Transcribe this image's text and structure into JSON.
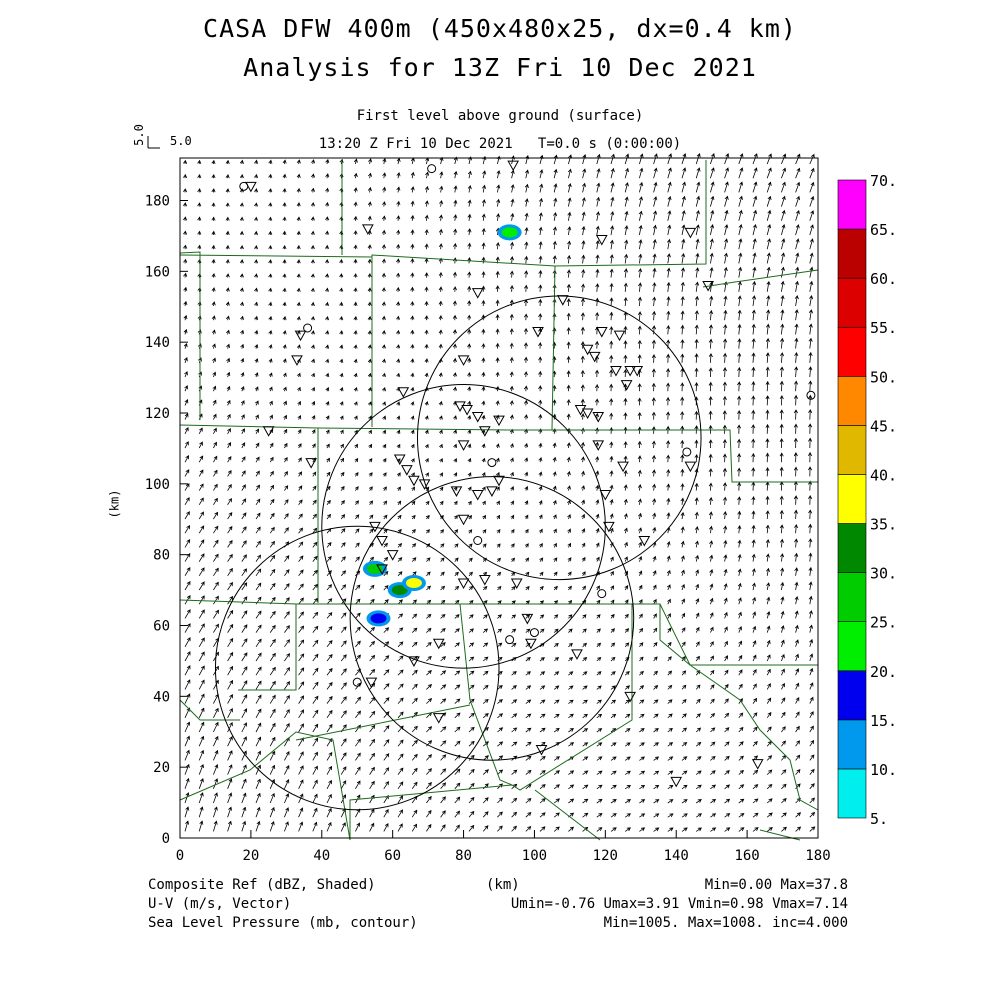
{
  "title_line1": "CASA DFW 400m (450x480x25, dx=0.4 km)",
  "title_line2": "Analysis for 13Z Fri 10 Dec 2021",
  "subtitle_line1": "First level above ground (surface)",
  "subtitle_line2": "13:20 Z Fri 10 Dec 2021   T=0.0 s (0:00:00)",
  "vector_reference": {
    "rotated_label": "5.0",
    "label": "5.0"
  },
  "axes": {
    "x_label": "(km)",
    "y_label": "(km)",
    "x_ticks": [
      0,
      20,
      40,
      60,
      80,
      100,
      120,
      140,
      160,
      180
    ],
    "y_ticks": [
      0,
      20,
      40,
      60,
      80,
      100,
      120,
      140,
      160,
      180
    ],
    "x_range": [
      0,
      180
    ],
    "y_range": [
      0,
      192
    ]
  },
  "colorbar": {
    "labels": [
      "5.",
      "10.",
      "15.",
      "20.",
      "25.",
      "30.",
      "35.",
      "40.",
      "45.",
      "50.",
      "55.",
      "60.",
      "65.",
      "70."
    ],
    "colors": [
      "#00eeee",
      "#0099ee",
      "#0000ee",
      "#00ee00",
      "#00cc00",
      "#008800",
      "#ffff00",
      "#e0b800",
      "#ff8800",
      "#ff0000",
      "#dd0000",
      "#bb0000",
      "#ff00ff"
    ]
  },
  "footer": {
    "left_line1": "Composite Ref (dBZ, Shaded)",
    "left_line2": "U-V (m/s, Vector)",
    "left_line3": "Sea Level Pressure (mb, contour)",
    "x_unit": "(km)",
    "right_line1": "Min=0.00 Max=37.8",
    "right_line2": "Umin=-0.76 Umax=3.91 Vmin=0.98 Vmax=7.14",
    "right_line3": "Min=1005. Max=1008. inc=4.000"
  },
  "radar_range_rings_km": [
    {
      "cx": 50,
      "cy": 48,
      "r": 40
    },
    {
      "cx": 80,
      "cy": 88,
      "r": 40
    },
    {
      "cx": 88,
      "cy": 62,
      "r": 40
    },
    {
      "cx": 107,
      "cy": 113,
      "r": 40
    }
  ],
  "reflectivity_cells_km": [
    {
      "x": 93,
      "y": 171,
      "dbz": 20
    },
    {
      "x": 55,
      "y": 76,
      "dbz": 25
    },
    {
      "x": 62,
      "y": 70,
      "dbz": 30
    },
    {
      "x": 66,
      "y": 72,
      "dbz": 35
    },
    {
      "x": 56,
      "y": 62,
      "dbz": 15
    }
  ]
}
